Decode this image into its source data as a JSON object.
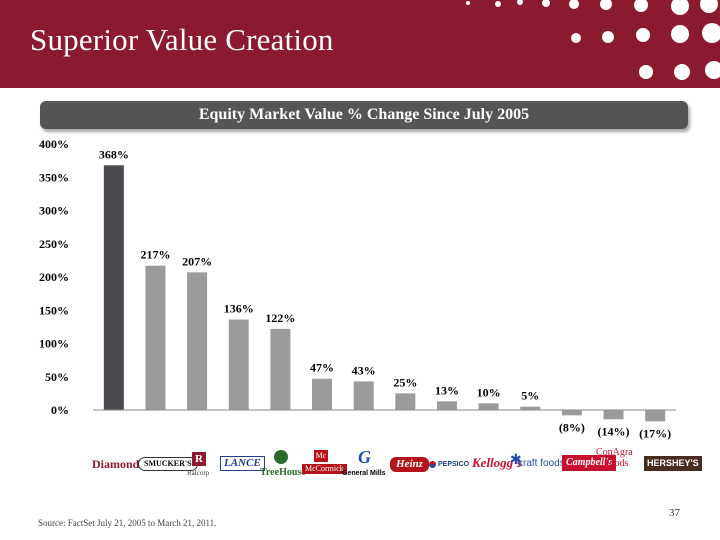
{
  "slide": {
    "title": "Superior Value Creation",
    "subtitle": "Equity Market Value % Change Since July 2005",
    "page_number": "37",
    "source": "Source: FactSet July 21, 2005 to March 21, 2011."
  },
  "colors": {
    "header": "#8c1a2e",
    "highlight_bar": "#4a4a4f",
    "bar": "#9b9b9b"
  },
  "chart_data": {
    "type": "bar",
    "title": "Equity Market Value % Change Since July 2005",
    "categories": [
      "Diamond",
      "Smucker's",
      "Ralcorp",
      "Lance",
      "TreeHouse",
      "McCormick",
      "General Mills",
      "Heinz",
      "PepsiCo",
      "Kellogg's",
      "Kraft Foods",
      "Campbell's",
      "ConAgra Foods",
      "Hershey's"
    ],
    "values": [
      368,
      217,
      207,
      136,
      122,
      47,
      43,
      25,
      13,
      10,
      5,
      -8,
      -14,
      -17
    ],
    "labels": [
      "368%",
      "217%",
      "207%",
      "136%",
      "122%",
      "47%",
      "43%",
      "25%",
      "13%",
      "10%",
      "5%",
      "(8%)",
      "(14%)",
      "(17%)"
    ],
    "highlight_index": 0,
    "ylim": [
      0,
      400
    ],
    "yticks": [
      "0%",
      "50%",
      "100%",
      "150%",
      "200%",
      "250%",
      "300%",
      "350%",
      "400%"
    ],
    "xlabel": "",
    "ylabel": ""
  },
  "logos": {
    "diamond": "Diamond",
    "smuckers": "SMUCKER'S",
    "ralcorp": "Ralcorp",
    "lance": "LANCE",
    "treehouse": "TreeHouse",
    "mccormick": "McCormick",
    "general_mills": "General Mills",
    "heinz": "Heinz",
    "pepsico": "PEPSICO",
    "kelloggs": "Kellogg's",
    "kraft": "kraft foods",
    "campbells": "Campbell's",
    "conagra_1": "ConAgra",
    "conagra_2": "Foods",
    "hersheys": "HERSHEY'S"
  }
}
